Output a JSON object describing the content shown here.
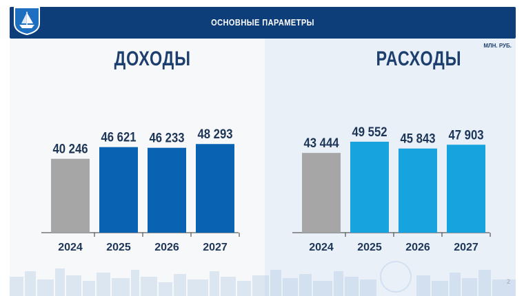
{
  "header": {
    "title": "ОСНОВНЫЕ ПАРАМЕТРЫ"
  },
  "units": "МЛН. РУБ.",
  "page_number": "2",
  "colors": {
    "header_bg": "#0d3e7a",
    "gray_bar": "#a6a6a6",
    "income_bar": "#0a63b2",
    "expense_bar": "#17a3de",
    "title_text": "#1d3f6e"
  },
  "chart_data": [
    {
      "type": "bar",
      "title": "ДОХОДЫ",
      "categories": [
        "2024",
        "2025",
        "2026",
        "2027"
      ],
      "values": [
        40246,
        46621,
        46233,
        48293
      ],
      "value_labels": [
        "40 246",
        "46 621",
        "46 233",
        "48 293"
      ],
      "colors": [
        "#a6a6a6",
        "#0a63b2",
        "#0a63b2",
        "#0a63b2"
      ],
      "ylim": [
        0,
        60000
      ],
      "grid": false
    },
    {
      "type": "bar",
      "title": "РАСХОДЫ",
      "categories": [
        "2024",
        "2025",
        "2026",
        "2027"
      ],
      "values": [
        43444,
        49552,
        45843,
        47903
      ],
      "value_labels": [
        "43 444",
        "49 552",
        "45 843",
        "47 903"
      ],
      "colors": [
        "#a6a6a6",
        "#17a3de",
        "#17a3de",
        "#17a3de"
      ],
      "ylim": [
        0,
        60000
      ],
      "grid": false
    }
  ]
}
